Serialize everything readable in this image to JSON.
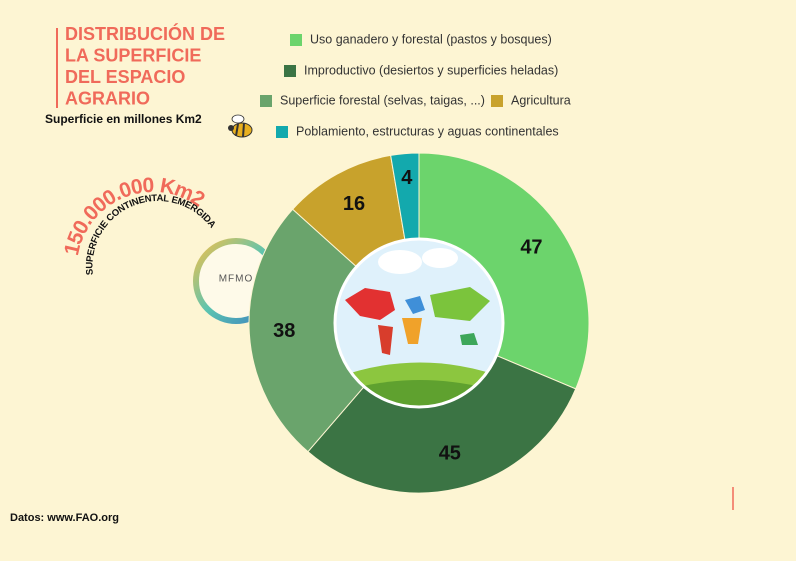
{
  "chart_data": {
    "type": "donut",
    "title": [
      "DISTRIBUCIÓN DE",
      "LA SUPERFICIE",
      "DEL ESPACIO",
      "AGRARIO"
    ],
    "subtitle": "Superficie en millones Km2",
    "categories": [
      "Uso ganadero y forestal (pastos y bosques)",
      "Improductivo (desiertos y superficies heladas)",
      "Superficie forestal (selvas, taigas, ...)",
      "Agricultura",
      "Poblamiento, estructuras y aguas continentales"
    ],
    "values": [
      47,
      45,
      38,
      16,
      4
    ],
    "colors": [
      "#6cd46c",
      "#3b7444",
      "#6aa46c",
      "#c8a22c",
      "#13a9ad"
    ],
    "total_label": "150.000.000 Km2",
    "total_caption": "SUPERFICIE CONTINENTAL EMERGIDA",
    "logo": "MFMO",
    "source": "Datos: www.FAO.org"
  }
}
